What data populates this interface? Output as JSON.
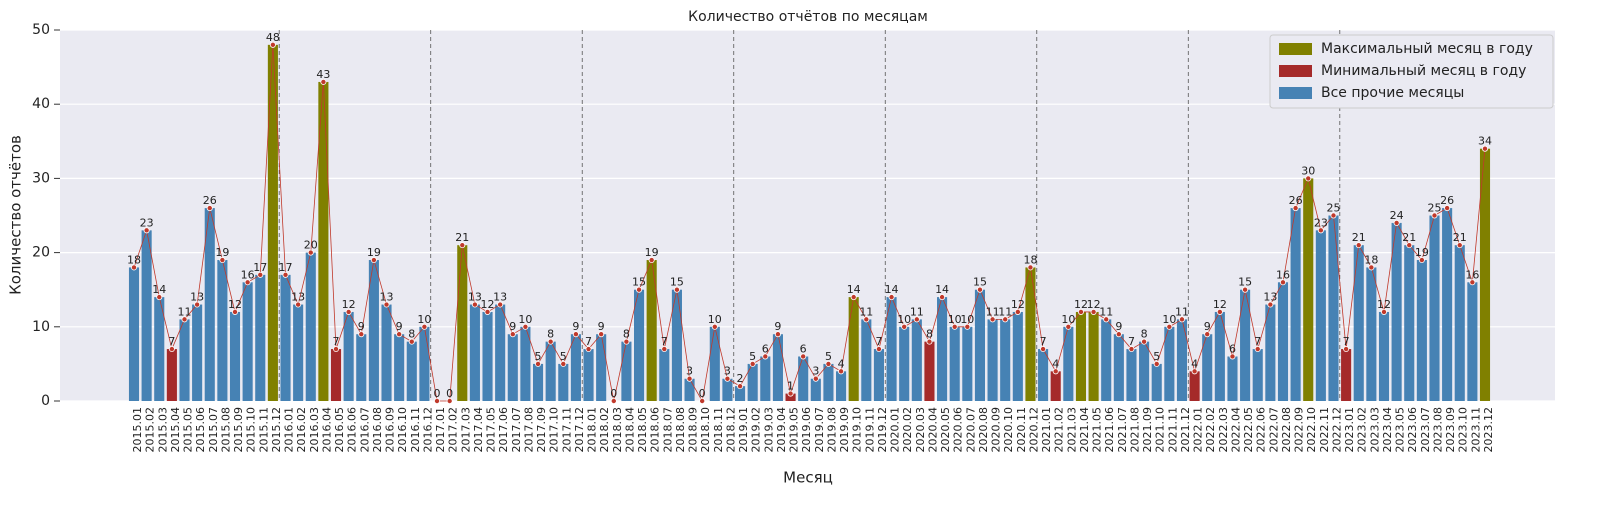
{
  "chart_data": {
    "type": "bar",
    "title": "Количество отчётов по месяцам",
    "xlabel": "Месяц",
    "ylabel": "Количество отчётов",
    "categories": [
      "2015.01",
      "2015.02",
      "2015.03",
      "2015.04",
      "2015.05",
      "2015.06",
      "2015.07",
      "2015.08",
      "2015.09",
      "2015.10",
      "2015.11",
      "2015.12",
      "2016.01",
      "2016.02",
      "2016.03",
      "2016.04",
      "2016.05",
      "2016.06",
      "2016.07",
      "2016.08",
      "2016.09",
      "2016.10",
      "2016.11",
      "2016.12",
      "2017.01",
      "2017.02",
      "2017.03",
      "2017.04",
      "2017.05",
      "2017.06",
      "2017.07",
      "2017.08",
      "2017.09",
      "2017.10",
      "2017.11",
      "2017.12",
      "2018.01",
      "2018.02",
      "2018.03",
      "2018.04",
      "2018.05",
      "2018.06",
      "2018.07",
      "2018.08",
      "2018.09",
      "2018.10",
      "2018.11",
      "2018.12",
      "2019.01",
      "2019.02",
      "2019.03",
      "2019.04",
      "2019.05",
      "2019.06",
      "2019.07",
      "2019.08",
      "2019.09",
      "2019.10",
      "2019.11",
      "2019.12",
      "2020.01",
      "2020.02",
      "2020.03",
      "2020.04",
      "2020.05",
      "2020.06",
      "2020.07",
      "2020.08",
      "2020.09",
      "2020.10",
      "2020.11",
      "2020.12",
      "2021.01",
      "2021.02",
      "2021.03",
      "2021.04",
      "2021.05",
      "2021.06",
      "2021.07",
      "2021.08",
      "2021.09",
      "2021.10",
      "2021.11",
      "2021.12",
      "2022.01",
      "2022.02",
      "2022.03",
      "2022.04",
      "2022.05",
      "2022.06",
      "2022.07",
      "2022.08",
      "2022.09",
      "2022.10",
      "2022.11",
      "2022.12",
      "2023.01",
      "2023.02",
      "2023.03",
      "2023.04",
      "2023.05",
      "2023.06",
      "2023.07",
      "2023.08",
      "2023.09",
      "2023.10",
      "2023.11",
      "2023.12"
    ],
    "values": [
      18,
      23,
      14,
      7,
      11,
      13,
      26,
      19,
      12,
      16,
      17,
      48,
      17,
      13,
      20,
      43,
      7,
      12,
      9,
      19,
      13,
      9,
      8,
      10,
      0,
      0,
      21,
      13,
      12,
      13,
      9,
      10,
      5,
      8,
      5,
      9,
      7,
      9,
      0,
      8,
      15,
      19,
      7,
      15,
      3,
      0,
      10,
      3,
      2,
      5,
      6,
      9,
      1,
      6,
      3,
      5,
      4,
      14,
      11,
      7,
      14,
      10,
      11,
      8,
      14,
      10,
      10,
      15,
      11,
      11,
      12,
      18,
      7,
      4,
      10,
      12,
      12,
      11,
      9,
      7,
      8,
      5,
      10,
      11,
      4,
      9,
      12,
      6,
      15,
      7,
      13,
      16,
      26,
      30,
      23,
      25,
      7,
      21,
      18,
      12,
      24,
      21,
      19,
      25,
      26,
      21,
      16,
      34
    ],
    "colors": [
      "#4682b4",
      "#4682b4",
      "#4682b4",
      "#a52a2a",
      "#4682b4",
      "#4682b4",
      "#4682b4",
      "#4682b4",
      "#4682b4",
      "#4682b4",
      "#4682b4",
      "#808000",
      "#4682b4",
      "#4682b4",
      "#4682b4",
      "#808000",
      "#a52a2a",
      "#4682b4",
      "#4682b4",
      "#4682b4",
      "#4682b4",
      "#4682b4",
      "#4682b4",
      "#4682b4",
      "#a52a2a",
      "#a52a2a",
      "#808000",
      "#4682b4",
      "#4682b4",
      "#4682b4",
      "#4682b4",
      "#4682b4",
      "#4682b4",
      "#4682b4",
      "#4682b4",
      "#4682b4",
      "#4682b4",
      "#4682b4",
      "#a52a2a",
      "#4682b4",
      "#4682b4",
      "#808000",
      "#4682b4",
      "#4682b4",
      "#4682b4",
      "#a52a2a",
      "#4682b4",
      "#4682b4",
      "#4682b4",
      "#4682b4",
      "#4682b4",
      "#4682b4",
      "#a52a2a",
      "#4682b4",
      "#4682b4",
      "#4682b4",
      "#4682b4",
      "#808000",
      "#4682b4",
      "#4682b4",
      "#4682b4",
      "#4682b4",
      "#4682b4",
      "#a52a2a",
      "#4682b4",
      "#4682b4",
      "#4682b4",
      "#4682b4",
      "#4682b4",
      "#4682b4",
      "#4682b4",
      "#808000",
      "#4682b4",
      "#a52a2a",
      "#4682b4",
      "#808000",
      "#808000",
      "#4682b4",
      "#4682b4",
      "#4682b4",
      "#4682b4",
      "#4682b4",
      "#4682b4",
      "#4682b4",
      "#a52a2a",
      "#4682b4",
      "#4682b4",
      "#4682b4",
      "#4682b4",
      "#4682b4",
      "#4682b4",
      "#4682b4",
      "#4682b4",
      "#808000",
      "#4682b4",
      "#4682b4",
      "#a52a2a",
      "#4682b4",
      "#4682b4",
      "#4682b4",
      "#4682b4",
      "#4682b4",
      "#4682b4",
      "#4682b4",
      "#4682b4",
      "#4682b4",
      "#4682b4",
      "#808000"
    ],
    "line_color": "#c0392b",
    "legend": [
      {
        "name": "Максимальный месяц в году",
        "color": "#808000"
      },
      {
        "name": "Минимальный месяц в году",
        "color": "#a52a2a"
      },
      {
        "name": "Все прочие месяцы",
        "color": "#4682b4"
      }
    ],
    "legend_position": "upper right",
    "ylim": [
      0,
      50
    ],
    "yticks": [
      0,
      10,
      20,
      30,
      40,
      50
    ],
    "grid": true
  }
}
